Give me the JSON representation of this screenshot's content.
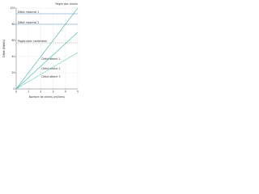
{
  "chart_data": {
    "type": "line",
    "annotation": "Pages des clients",
    "x_label": "Nombre de clients (milliers)",
    "y_label": "Débit (Mbit/s)",
    "x": [
      0,
      1,
      2,
      3,
      4,
      5
    ],
    "xlim": [
      0,
      5
    ],
    "xticks": [
      0,
      1,
      2,
      3,
      4,
      5
    ],
    "ylim": [
      0,
      100
    ],
    "yticks": [
      0,
      20,
      40,
      60,
      80,
      100
    ],
    "grid": true,
    "series": [
      {
        "name": "Débit maximal 1",
        "color": "#5b8fc7",
        "dash": false,
        "values": [
          93,
          93,
          93,
          93,
          93,
          93
        ]
      },
      {
        "name": "Débit maximal 2",
        "color": "#5b8fc7",
        "dash": false,
        "values": [
          80,
          80,
          80,
          80,
          80,
          80
        ]
      },
      {
        "name": "Pages avec contention",
        "color": "#888888",
        "dash": true,
        "values": [
          57,
          57,
          57,
          57,
          57,
          57
        ]
      },
      {
        "name": "Débit atteint 1",
        "color": "#2aa59a",
        "dash": false,
        "values": [
          0,
          20,
          40,
          60,
          80,
          100
        ]
      },
      {
        "name": "Débit atteint 2",
        "color": "#3cbfa8",
        "dash": false,
        "values": [
          0,
          14,
          28,
          42,
          56,
          70
        ]
      },
      {
        "name": "Débit atteint 3",
        "color": "#62cdb4",
        "dash": false,
        "values": [
          0,
          9,
          18,
          27,
          36,
          45
        ]
      }
    ]
  }
}
